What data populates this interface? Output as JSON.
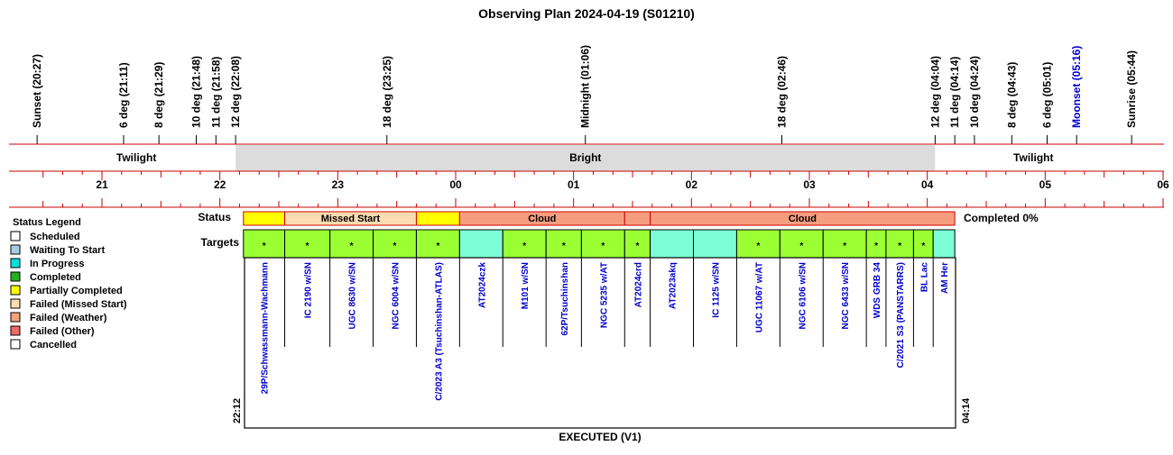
{
  "title": "Observing Plan 2024-04-19 (S01210)",
  "colors": {
    "axis_red": "#cc0000",
    "bright_band": "#dcdcdc",
    "label_blue": "#0000cc",
    "missed_start": "#fbdcb0",
    "partial": "#ffff00",
    "cloud": "#f79d7f",
    "completed_target": "#9aff33",
    "progress_target": "#7dffd6"
  },
  "events": [
    {
      "label": "Sunset (20:27)",
      "time": "20:27",
      "color": "black"
    },
    {
      "label": "6 deg (21:11)",
      "time": "21:11",
      "color": "black"
    },
    {
      "label": "8 deg (21:29)",
      "time": "21:29",
      "color": "black"
    },
    {
      "label": "10 deg (21:48)",
      "time": "21:48",
      "color": "black"
    },
    {
      "label": "11 deg (21:58)",
      "time": "21:58",
      "color": "black"
    },
    {
      "label": "12 deg (22:08)",
      "time": "22:08",
      "color": "black"
    },
    {
      "label": "18 deg (23:25)",
      "time": "23:25",
      "color": "black"
    },
    {
      "label": "Midnight (01:06)",
      "time": "01:06",
      "color": "black"
    },
    {
      "label": "18 deg (02:46)",
      "time": "02:46",
      "color": "black"
    },
    {
      "label": "12 deg (04:04)",
      "time": "04:04",
      "color": "black"
    },
    {
      "label": "11 deg (04:14)",
      "time": "04:14",
      "color": "black"
    },
    {
      "label": "10 deg (04:24)",
      "time": "04:24",
      "color": "black"
    },
    {
      "label": "8 deg (04:43)",
      "time": "04:43",
      "color": "black"
    },
    {
      "label": "6 deg (05:01)",
      "time": "05:01",
      "color": "black"
    },
    {
      "label": "Moonset (05:16)",
      "time": "05:16",
      "color": "blue"
    },
    {
      "label": "Sunrise (05:44)",
      "time": "05:44",
      "color": "black"
    }
  ],
  "bands": [
    {
      "label": "Twilight",
      "start": "20:27",
      "end": "22:08",
      "fill": "white"
    },
    {
      "label": "Bright",
      "start": "22:08",
      "end": "04:04",
      "fill": "grey"
    },
    {
      "label": "Twilight",
      "start": "04:04",
      "end": "05:44",
      "fill": "white"
    }
  ],
  "hour_ticks": [
    "21",
    "22",
    "23",
    "00",
    "01",
    "02",
    "03",
    "04",
    "05",
    "06"
  ],
  "legend": {
    "title": "Status Legend",
    "items": [
      {
        "label": "Scheduled",
        "color": "#ffffff"
      },
      {
        "label": "Waiting To Start",
        "color": "#a6cee3"
      },
      {
        "label": "In Progress",
        "color": "#00e0e0"
      },
      {
        "label": "Completed",
        "color": "#22b022"
      },
      {
        "label": "Partially Completed",
        "color": "#ffff00"
      },
      {
        "label": "Failed (Missed Start)",
        "color": "#fbdcb0"
      },
      {
        "label": "Failed (Weather)",
        "color": "#f7a27f"
      },
      {
        "label": "Failed (Other)",
        "color": "#f06a6a"
      },
      {
        "label": "Cancelled",
        "color": "#ffffff"
      }
    ]
  },
  "status_label": "Status",
  "targets_label": "Targets",
  "completed_text": "Completed 0%",
  "start_time": "22:12",
  "end_time": "04:14",
  "footer": "EXECUTED (V1)",
  "status_segments": [
    {
      "label": "",
      "start": "22:12",
      "end": "22:33",
      "kind": "partial"
    },
    {
      "label": "Missed Start",
      "start": "22:33",
      "end": "23:40",
      "kind": "missed"
    },
    {
      "label": "",
      "start": "23:40",
      "end": "00:02",
      "kind": "partial"
    },
    {
      "label": "Cloud",
      "start": "00:02",
      "end": "01:26",
      "kind": "cloud"
    },
    {
      "label": "",
      "start": "01:26",
      "end": "01:39",
      "kind": "cloud"
    },
    {
      "label": "Cloud",
      "start": "01:39",
      "end": "04:14",
      "kind": "cloud"
    }
  ],
  "targets": [
    {
      "name": "29P/Schwassmann-Wachmann",
      "start": "22:12",
      "end": "22:33",
      "kind": "completed",
      "mark": "*"
    },
    {
      "name": "IC 2190 w/SN",
      "start": "22:33",
      "end": "22:56",
      "kind": "completed",
      "mark": "*"
    },
    {
      "name": "UGC 8630 w/SN",
      "start": "22:56",
      "end": "23:18",
      "kind": "completed",
      "mark": "*"
    },
    {
      "name": "NGC 6004 w/SN",
      "start": "23:18",
      "end": "23:40",
      "kind": "completed",
      "mark": "*"
    },
    {
      "name": "C/2023 A3 (Tsuchinshan-ATLAS)",
      "start": "23:40",
      "end": "00:02",
      "kind": "completed",
      "mark": "*"
    },
    {
      "name": "AT2024czk",
      "start": "00:02",
      "end": "00:24",
      "kind": "progress",
      "mark": ""
    },
    {
      "name": "M101 w/SN",
      "start": "00:24",
      "end": "00:46",
      "kind": "completed",
      "mark": "*"
    },
    {
      "name": "62P/Tsuchinshan",
      "start": "00:46",
      "end": "01:04",
      "kind": "completed",
      "mark": "*"
    },
    {
      "name": "NGC 5235 w/AT",
      "start": "01:04",
      "end": "01:26",
      "kind": "completed",
      "mark": "*"
    },
    {
      "name": "AT2024crd",
      "start": "01:26",
      "end": "01:39",
      "kind": "completed",
      "mark": "*"
    },
    {
      "name": "AT2023akq",
      "start": "01:39",
      "end": "02:01",
      "kind": "progress",
      "mark": ""
    },
    {
      "name": "IC 1125 w/SN",
      "start": "02:01",
      "end": "02:23",
      "kind": "progress",
      "mark": ""
    },
    {
      "name": "UGC 11067 w/AT",
      "start": "02:23",
      "end": "02:45",
      "kind": "completed",
      "mark": "*"
    },
    {
      "name": "NGC 6106 w/SN",
      "start": "02:45",
      "end": "03:07",
      "kind": "completed",
      "mark": "*"
    },
    {
      "name": "NGC 6433 w/SN",
      "start": "03:07",
      "end": "03:29",
      "kind": "completed",
      "mark": "*"
    },
    {
      "name": "WDS GRB 34",
      "start": "03:29",
      "end": "03:39",
      "kind": "completed",
      "mark": "*"
    },
    {
      "name": "C/2021 S3 (PANSTARRS)",
      "start": "03:39",
      "end": "03:53",
      "kind": "completed",
      "mark": "*"
    },
    {
      "name": "BL Lac",
      "start": "03:53",
      "end": "04:03",
      "kind": "completed",
      "mark": "*"
    },
    {
      "name": "AM Her",
      "start": "04:03",
      "end": "04:14",
      "kind": "progress",
      "mark": ""
    }
  ]
}
